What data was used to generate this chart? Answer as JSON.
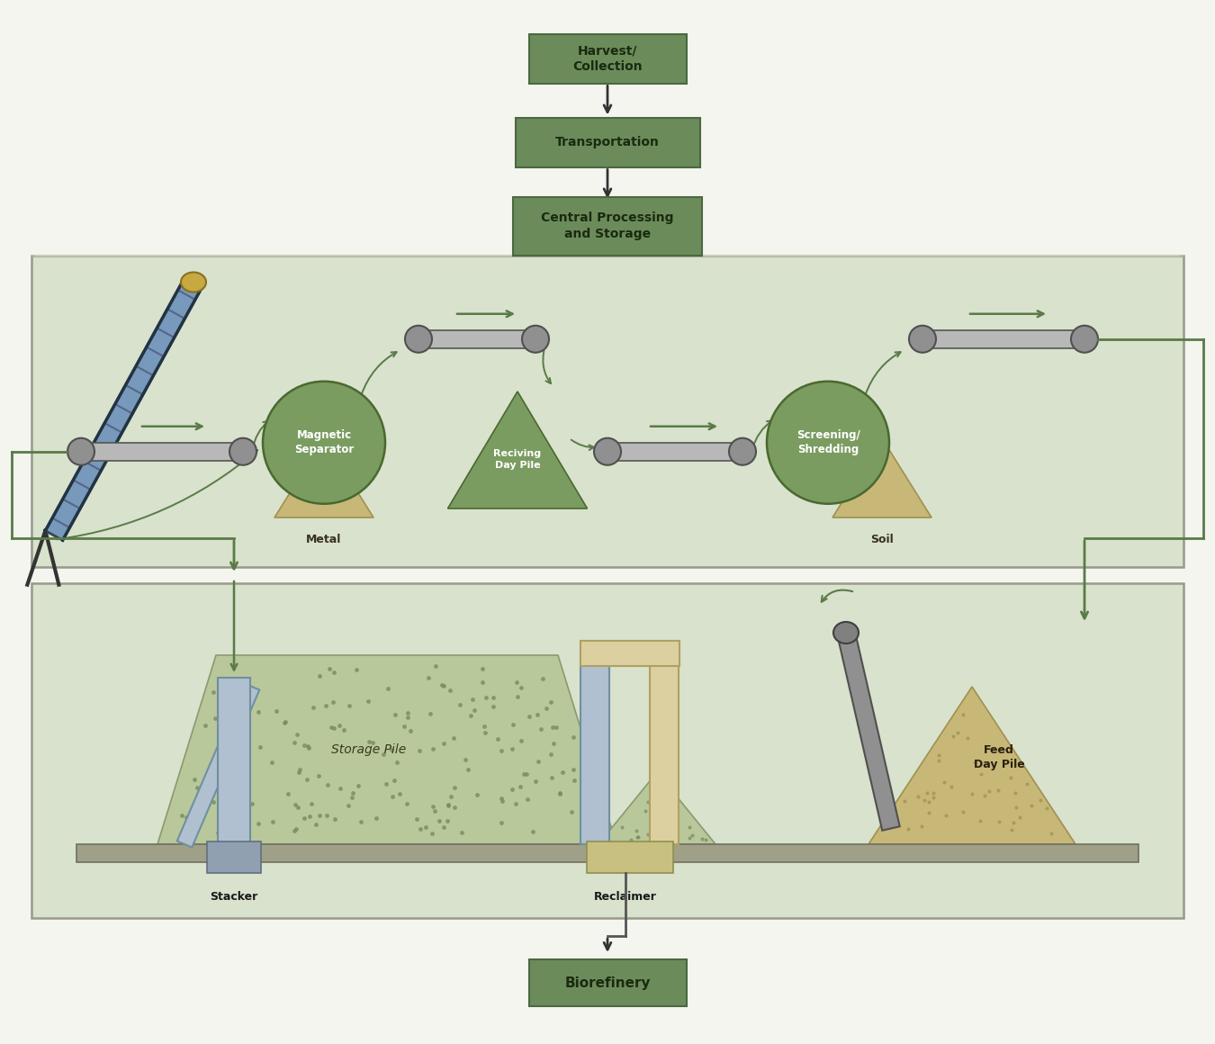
{
  "bg_color": "#f5f5f0",
  "box_fill": "#6b8c5a",
  "box_edge": "#4a6840",
  "box_text_color": "#1a2a10",
  "panel_bg": "#d8e2cc",
  "panel_edge": "#999988",
  "arrow_color": "#5a7a48",
  "pile_green": "#7a9c60",
  "pile_green_edge": "#4a6830",
  "pile_tan": "#c8b878",
  "pile_tan_edge": "#a09050",
  "storage_pile_color": "#b8c89a",
  "storage_pile_edge": "#8a9a70",
  "conveyor_fill": "#aaaaaa",
  "conveyor_edge": "#555555",
  "stacker_blue": "#b0c0d0",
  "stacker_blue_edge": "#7090a0",
  "reclaimer_cream": "#ddd0a0",
  "reclaimer_blue": "#b0c0d0",
  "labels": {
    "harvest": "Harvest/\nCollection",
    "transport": "Transportation",
    "central": "Central Processing\nand Storage",
    "biorefinery": "Biorefinery",
    "magnetic": "Magnetic\nSeparator",
    "receiving": "Reciving\nDay Pile",
    "screening": "Screening/\nShredding",
    "metal": "Metal",
    "soil": "Soil",
    "storage": "Storage Pile",
    "stacker": "Stacker",
    "reclaimer": "Reclaimer",
    "feed": "Feed\nDay Pile"
  }
}
